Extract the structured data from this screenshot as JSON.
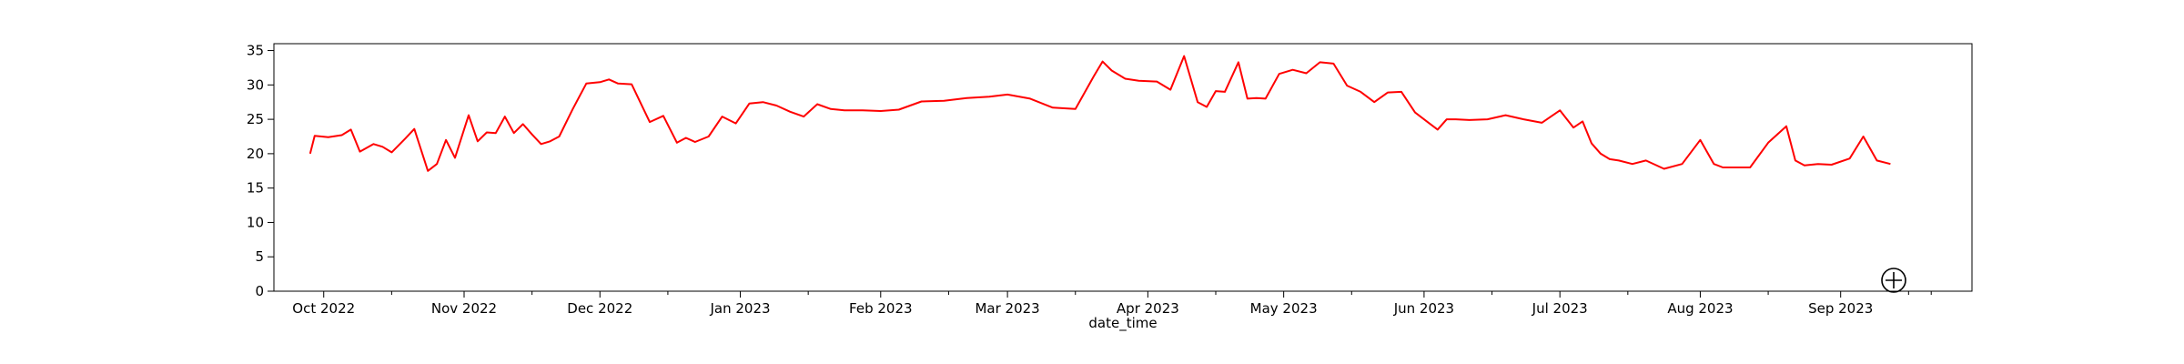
{
  "chart_data": {
    "type": "line",
    "title": "",
    "xlabel": "date_time",
    "ylabel": "",
    "ylim": [
      0,
      36
    ],
    "xlim": [
      "2022-09-20",
      "2023-09-30"
    ],
    "yticks": [
      0,
      5,
      10,
      15,
      20,
      25,
      30,
      35
    ],
    "xticks": [
      {
        "date": "2022-10-01",
        "label": "Oct 2022"
      },
      {
        "date": "2022-11-01",
        "label": "Nov 2022"
      },
      {
        "date": "2022-12-01",
        "label": "Dec 2022"
      },
      {
        "date": "2023-01-01",
        "label": "Jan 2023"
      },
      {
        "date": "2023-02-01",
        "label": "Feb 2023"
      },
      {
        "date": "2023-03-01",
        "label": "Mar 2023"
      },
      {
        "date": "2023-04-01",
        "label": "Apr 2023"
      },
      {
        "date": "2023-05-01",
        "label": "May 2023"
      },
      {
        "date": "2023-06-01",
        "label": "Jun 2023"
      },
      {
        "date": "2023-07-01",
        "label": "Jul 2023"
      },
      {
        "date": "2023-08-01",
        "label": "Aug 2023"
      },
      {
        "date": "2023-09-01",
        "label": "Sep 2023"
      }
    ],
    "grid": false,
    "line_color": "#ff0000",
    "series": [
      {
        "x": [
          "2022-09-28",
          "2022-09-29",
          "2022-10-02",
          "2022-10-05",
          "2022-10-07",
          "2022-10-09",
          "2022-10-12",
          "2022-10-14",
          "2022-10-16",
          "2022-10-19",
          "2022-10-21",
          "2022-10-24",
          "2022-10-26",
          "2022-10-28",
          "2022-10-30",
          "2022-11-02",
          "2022-11-04",
          "2022-11-06",
          "2022-11-08",
          "2022-11-10",
          "2022-11-12",
          "2022-11-14",
          "2022-11-16",
          "2022-11-18",
          "2022-11-20",
          "2022-11-22",
          "2022-11-25",
          "2022-11-28",
          "2022-12-01",
          "2022-12-03",
          "2022-12-05",
          "2022-12-08",
          "2022-12-12",
          "2022-12-15",
          "2022-12-18",
          "2022-12-20",
          "2022-12-22",
          "2022-12-25",
          "2022-12-28",
          "2022-12-31",
          "2023-01-03",
          "2023-01-06",
          "2023-01-09",
          "2023-01-12",
          "2023-01-15",
          "2023-01-18",
          "2023-01-21",
          "2023-01-24",
          "2023-01-28",
          "2023-02-01",
          "2023-02-05",
          "2023-02-10",
          "2023-02-15",
          "2023-02-20",
          "2023-02-25",
          "2023-03-01",
          "2023-03-06",
          "2023-03-11",
          "2023-03-16",
          "2023-03-20",
          "2023-03-22",
          "2023-03-24",
          "2023-03-27",
          "2023-03-30",
          "2023-04-03",
          "2023-04-06",
          "2023-04-09",
          "2023-04-12",
          "2023-04-14",
          "2023-04-16",
          "2023-04-18",
          "2023-04-21",
          "2023-04-23",
          "2023-04-25",
          "2023-04-27",
          "2023-04-30",
          "2023-05-03",
          "2023-05-06",
          "2023-05-09",
          "2023-05-12",
          "2023-05-15",
          "2023-05-18",
          "2023-05-21",
          "2023-05-24",
          "2023-05-27",
          "2023-05-30",
          "2023-06-02",
          "2023-06-04",
          "2023-06-06",
          "2023-06-08",
          "2023-06-11",
          "2023-06-15",
          "2023-06-19",
          "2023-06-23",
          "2023-06-27",
          "2023-07-01",
          "2023-07-04",
          "2023-07-06",
          "2023-07-08",
          "2023-07-10",
          "2023-07-12",
          "2023-07-14",
          "2023-07-17",
          "2023-07-20",
          "2023-07-24",
          "2023-07-28",
          "2023-08-01",
          "2023-08-04",
          "2023-08-06",
          "2023-08-09",
          "2023-08-12",
          "2023-08-16",
          "2023-08-20",
          "2023-08-22",
          "2023-08-24",
          "2023-08-27",
          "2023-08-30",
          "2023-09-03",
          "2023-09-06",
          "2023-09-09",
          "2023-09-12"
        ],
        "y": [
          20.0,
          22.6,
          22.4,
          22.7,
          23.5,
          20.3,
          21.4,
          21.0,
          20.2,
          22.2,
          23.6,
          17.5,
          18.5,
          22.0,
          19.4,
          25.6,
          21.8,
          23.1,
          23.0,
          25.4,
          23.0,
          24.3,
          22.8,
          21.4,
          21.8,
          22.5,
          26.5,
          30.2,
          30.4,
          30.8,
          30.2,
          30.1,
          24.6,
          25.5,
          21.6,
          22.3,
          21.7,
          22.5,
          25.4,
          24.4,
          27.3,
          27.5,
          27.0,
          26.1,
          25.4,
          27.2,
          26.5,
          26.3,
          26.3,
          26.2,
          26.4,
          27.6,
          27.7,
          28.1,
          28.3,
          28.6,
          28.0,
          26.7,
          26.5,
          31.2,
          33.4,
          32.1,
          30.9,
          30.6,
          30.5,
          29.3,
          34.2,
          27.5,
          26.8,
          29.1,
          29.0,
          33.3,
          28.0,
          28.1,
          28.0,
          31.6,
          32.2,
          31.7,
          33.3,
          33.1,
          29.9,
          29.0,
          27.5,
          28.9,
          29.0,
          26.0,
          24.5,
          23.5,
          25.0,
          25.0,
          24.9,
          25.0,
          25.6,
          25.0,
          24.5,
          26.3,
          23.8,
          24.7,
          21.5,
          20.0,
          19.2,
          19.0,
          18.5,
          19.0,
          17.8,
          18.5,
          22.0,
          18.5,
          18.0,
          18.0,
          18.0,
          21.6,
          24.0,
          19.0,
          18.3,
          18.5,
          18.4,
          19.3,
          22.5,
          19.0,
          18.5
        ]
      }
    ]
  },
  "cursor": {
    "icon": "crosshair-circle-icon"
  }
}
